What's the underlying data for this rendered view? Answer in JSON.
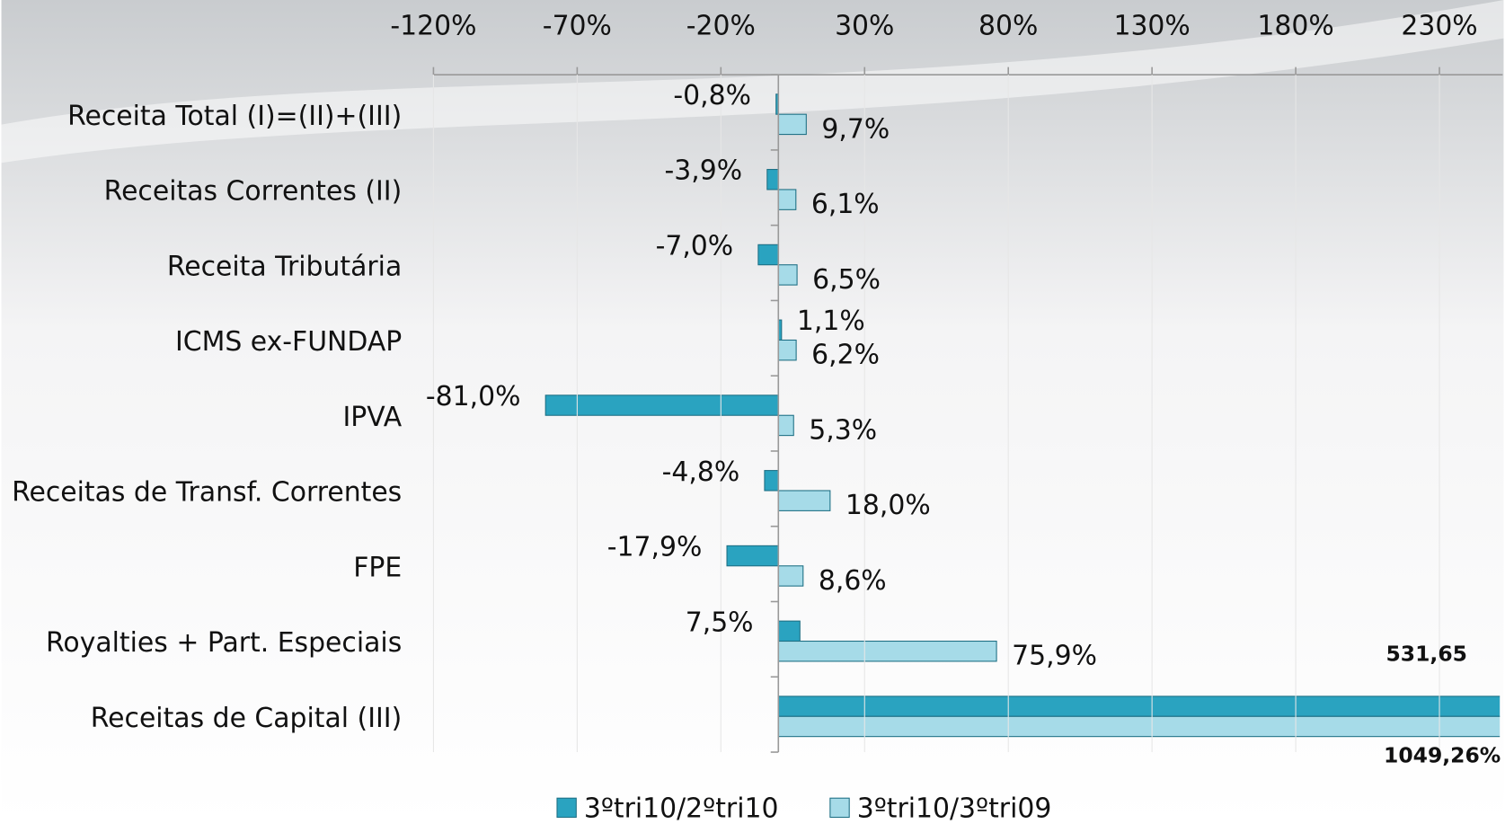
{
  "chart_data": {
    "type": "bar",
    "orientation": "horizontal",
    "categories": [
      "Receita Total (I)=(II)+(III)",
      "Receitas Correntes (II)",
      "Receita Tributária",
      "ICMS ex-FUNDAP",
      "IPVA",
      "Receitas de Transf. Correntes",
      "FPE",
      "Royalties + Part. Especiais",
      "Receitas de Capital (III)"
    ],
    "series": [
      {
        "name": "3ºtri10/2ºtri10",
        "color": "#2aa3c0",
        "values": [
          -0.8,
          -3.9,
          -7.0,
          1.1,
          -81.0,
          -4.8,
          -17.9,
          7.5,
          531.65
        ],
        "value_labels": [
          "-0,8%",
          "-3,9%",
          "-7,0%",
          "1,1%",
          "-81,0%",
          "-4,8%",
          "-17,9%",
          "7,5%",
          "531,65"
        ]
      },
      {
        "name": "3ºtri10/3ºtri09",
        "color": "#a6dbe8",
        "values": [
          9.7,
          6.1,
          6.5,
          6.2,
          5.3,
          18.0,
          8.6,
          75.9,
          1049.26
        ],
        "value_labels": [
          "9,7%",
          "6,1%",
          "6,5%",
          "6,2%",
          "5,3%",
          "18,0%",
          "8,6%",
          "75,9%",
          "1049,26%"
        ]
      }
    ],
    "xlim": [
      -120,
      252
    ],
    "xticks": [
      {
        "value": -120,
        "label": "-120%"
      },
      {
        "value": -70,
        "label": "-70%"
      },
      {
        "value": -20,
        "label": "-20%"
      },
      {
        "value": 30,
        "label": "30%"
      },
      {
        "value": 80,
        "label": "80%"
      },
      {
        "value": 130,
        "label": "130%"
      },
      {
        "value": 180,
        "label": "180%"
      },
      {
        "value": 230,
        "label": "230%"
      }
    ],
    "legend": "bottom"
  }
}
